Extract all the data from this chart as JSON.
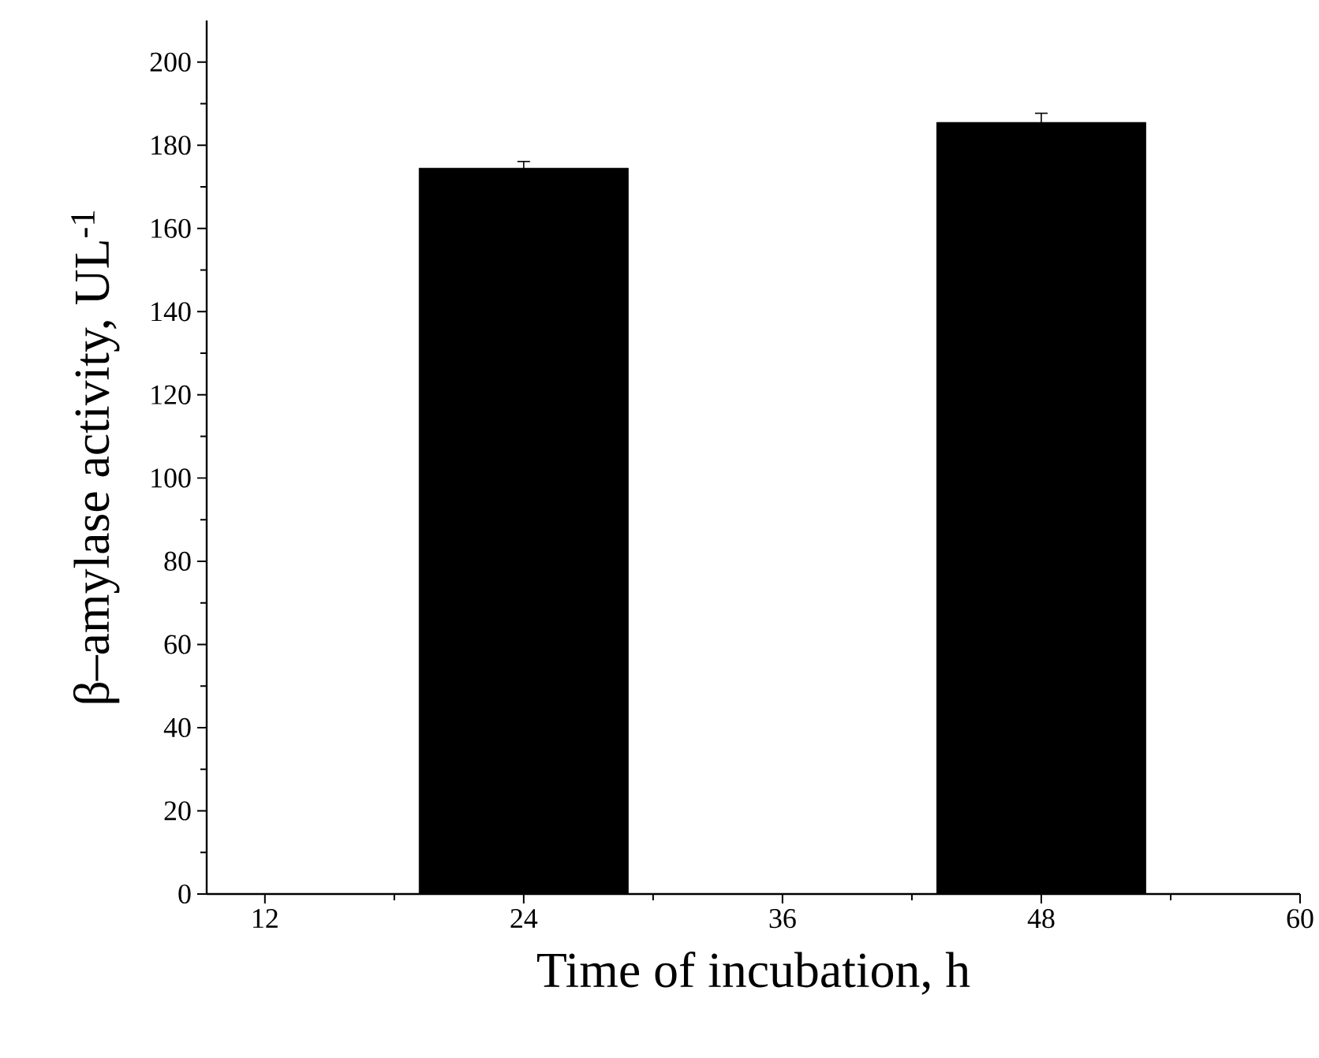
{
  "chart_data": {
    "type": "bar",
    "xlabel": "Time of incubation, h",
    "ylabel": "β–amylase activity, UL$^{-1}$",
    "x": [
      24,
      48
    ],
    "values": [
      174.5,
      185.5
    ],
    "errors": [
      1.6,
      2.2
    ],
    "color": "#000000",
    "xlim": [
      9.3,
      60
    ],
    "xticks": [
      12,
      24,
      36,
      48,
      60
    ],
    "ylim": [
      0,
      210
    ],
    "yticks": [
      0,
      20,
      40,
      60,
      80,
      100,
      120,
      140,
      160,
      180,
      200
    ],
    "grid": false
  }
}
